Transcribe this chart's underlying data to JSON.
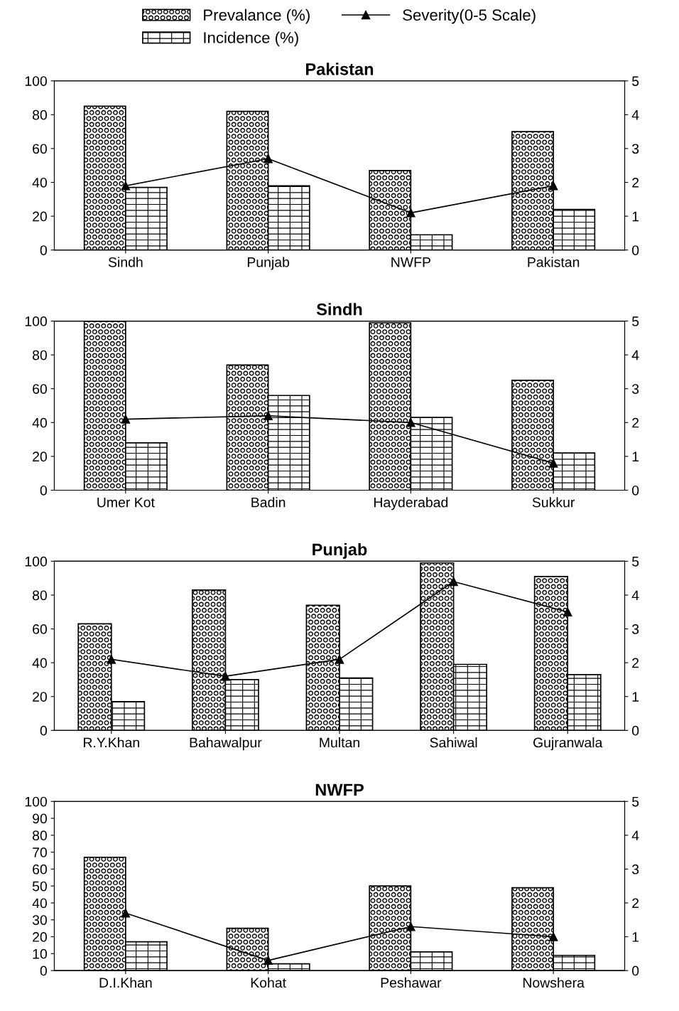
{
  "chart_data": [
    {
      "type": "bar",
      "title": "Pakistan",
      "categories": [
        "Sindh",
        "Punjab",
        "NWFP",
        "Pakistan"
      ],
      "legend": "top",
      "grid": false,
      "ylim": [
        0,
        100
      ],
      "yticks": [
        0,
        20,
        40,
        60,
        80,
        100
      ],
      "y2lim": [
        0,
        5
      ],
      "y2ticks": [
        0,
        1,
        2,
        3,
        4,
        5
      ],
      "series": [
        {
          "name": "Prevalance (%)",
          "color": "#000000",
          "values": [
            85,
            82,
            47,
            70
          ]
        },
        {
          "name": "Incidence (%)",
          "color": "#000000",
          "values": [
            37,
            38,
            9,
            24
          ]
        },
        {
          "name": "Severity(0-5 Scale)",
          "type": "line",
          "axis": "y2",
          "marker": "triangle",
          "color": "#000000",
          "values": [
            1.9,
            2.7,
            1.1,
            1.9
          ]
        }
      ]
    },
    {
      "type": "bar",
      "title": "Sindh",
      "categories": [
        "Umer Kot",
        "Badin",
        "Hayderabad",
        "Sukkur"
      ],
      "grid": false,
      "ylim": [
        0,
        100
      ],
      "yticks": [
        0,
        20,
        40,
        60,
        80,
        100
      ],
      "y2lim": [
        0,
        5
      ],
      "y2ticks": [
        0,
        1,
        2,
        3,
        4,
        5
      ],
      "series": [
        {
          "color": "#000000",
          "values": [
            100,
            74,
            99,
            65
          ]
        },
        {
          "color": "#000000",
          "values": [
            28,
            56,
            43,
            22
          ]
        },
        {
          "type": "line",
          "axis": "y2",
          "marker": "triangle",
          "color": "#000000",
          "values": [
            2.1,
            2.2,
            2.0,
            0.8
          ]
        }
      ]
    },
    {
      "type": "bar",
      "title": "Punjab",
      "categories": [
        "R.Y.Khan",
        "Bahawalpur",
        "Multan",
        "Sahiwal",
        "Gujranwala"
      ],
      "grid": false,
      "ylim": [
        0,
        100
      ],
      "yticks": [
        0,
        20,
        40,
        60,
        80,
        100
      ],
      "y2lim": [
        0,
        5
      ],
      "y2ticks": [
        0,
        1,
        2,
        3,
        4,
        5
      ],
      "series": [
        {
          "color": "#000000",
          "values": [
            63,
            83,
            74,
            99,
            91
          ]
        },
        {
          "color": "#000000",
          "values": [
            17,
            30,
            31,
            39,
            33
          ]
        },
        {
          "type": "line",
          "axis": "y2",
          "marker": "triangle",
          "color": "#000000",
          "values": [
            2.1,
            1.6,
            2.1,
            4.4,
            3.5
          ]
        }
      ]
    },
    {
      "type": "bar",
      "title": "NWFP",
      "categories": [
        "D.I.Khan",
        "Kohat",
        "Peshawar",
        "Nowshera"
      ],
      "grid": false,
      "ylim": [
        0,
        100
      ],
      "yticks": [
        0,
        10,
        20,
        30,
        40,
        50,
        60,
        70,
        80,
        90,
        100
      ],
      "y2lim": [
        0,
        5
      ],
      "y2ticks": [
        0,
        1,
        2,
        3,
        4,
        5
      ],
      "series": [
        {
          "color": "#000000",
          "values": [
            67,
            25,
            50,
            49
          ]
        },
        {
          "color": "#000000",
          "values": [
            17,
            4,
            11,
            9
          ]
        },
        {
          "type": "line",
          "axis": "y2",
          "marker": "triangle",
          "color": "#000000",
          "values": [
            1.7,
            0.3,
            1.3,
            1.0
          ]
        }
      ]
    }
  ]
}
